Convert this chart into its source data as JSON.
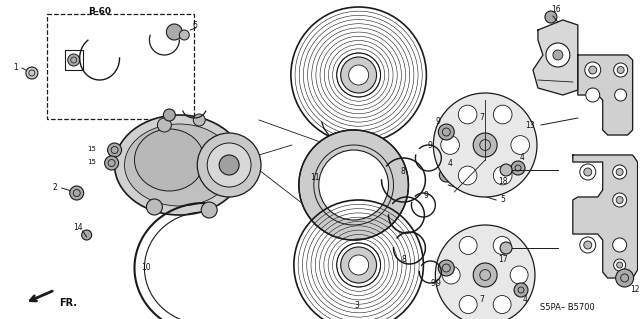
{
  "bg_color": "#ffffff",
  "fig_width": 6.4,
  "fig_height": 3.19,
  "dpi": 100,
  "diagram_code": "S5PA– B5700",
  "line_color": "#1a1a1a",
  "text_color": "#111111"
}
